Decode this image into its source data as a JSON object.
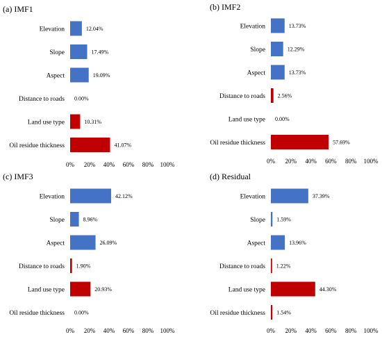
{
  "chart_data": [
    {
      "type": "bar",
      "orientation": "horizontal",
      "title": "(a) IMF1",
      "categories": [
        "Elevation",
        "Slope",
        "Aspect",
        "Distance to roads",
        "Land use type",
        "Oil residue thickness"
      ],
      "values": [
        12.04,
        17.49,
        19.09,
        0.0,
        10.31,
        41.07
      ],
      "value_labels": [
        "12.04%",
        "17.49%",
        "19.09%",
        "0.00%",
        "10.31%",
        "41.07%"
      ],
      "bar_colors": [
        "#4472C4",
        "#4472C4",
        "#4472C4",
        "#C00000",
        "#C00000",
        "#C00000"
      ],
      "xlim": [
        0,
        100
      ],
      "xticks": [
        "0%",
        "20%",
        "40%",
        "60%",
        "80%",
        "100%"
      ],
      "grid": false,
      "xlabel": "",
      "ylabel": ""
    },
    {
      "type": "bar",
      "orientation": "horizontal",
      "title": "(b) IMF2",
      "categories": [
        "Elevation",
        "Slope",
        "Aspect",
        "Distance to roads",
        "Land use type",
        "Oil residue thickness"
      ],
      "values": [
        13.73,
        12.29,
        13.73,
        2.56,
        0.0,
        57.69
      ],
      "value_labels": [
        "13.73%",
        "12.29%",
        "13.73%",
        "2.56%",
        "0.00%",
        "57.69%"
      ],
      "bar_colors": [
        "#4472C4",
        "#4472C4",
        "#4472C4",
        "#C00000",
        "#C00000",
        "#C00000"
      ],
      "xlim": [
        0,
        100
      ],
      "xticks": [
        "0%",
        "20%",
        "40%",
        "60%",
        "80%",
        "100%"
      ],
      "grid": false,
      "xlabel": "",
      "ylabel": ""
    },
    {
      "type": "bar",
      "orientation": "horizontal",
      "title": "(c) IMF3",
      "categories": [
        "Elevation",
        "Slope",
        "Aspect",
        "Distance to roads",
        "Land use type",
        "Oil residue thickness"
      ],
      "values": [
        42.12,
        8.96,
        26.09,
        1.9,
        20.93,
        0.0
      ],
      "value_labels": [
        "42.12%",
        "8.96%",
        "26.09%",
        "1.90%",
        "20.93%",
        "0.00%"
      ],
      "bar_colors": [
        "#4472C4",
        "#4472C4",
        "#4472C4",
        "#C00000",
        "#C00000",
        "#C00000"
      ],
      "xlim": [
        0,
        100
      ],
      "xticks": [
        "0%",
        "20%",
        "40%",
        "60%",
        "80%",
        "100%"
      ],
      "grid": false,
      "xlabel": "",
      "ylabel": ""
    },
    {
      "type": "bar",
      "orientation": "horizontal",
      "title": "(d) Residual",
      "categories": [
        "Elevation",
        "Slope",
        "Aspect",
        "Distance to roads",
        "Land use type",
        "Oil residue thickness"
      ],
      "values": [
        37.39,
        1.59,
        13.96,
        1.22,
        44.3,
        1.54
      ],
      "value_labels": [
        "37.39%",
        "1.59%",
        "13.96%",
        "1.22%",
        "44.30%",
        "1.54%"
      ],
      "bar_colors": [
        "#4472C4",
        "#4472C4",
        "#4472C4",
        "#C00000",
        "#C00000",
        "#C00000"
      ],
      "xlim": [
        0,
        100
      ],
      "xticks": [
        "0%",
        "20%",
        "40%",
        "60%",
        "80%",
        "100%"
      ],
      "grid": false,
      "xlabel": "",
      "ylabel": ""
    }
  ]
}
